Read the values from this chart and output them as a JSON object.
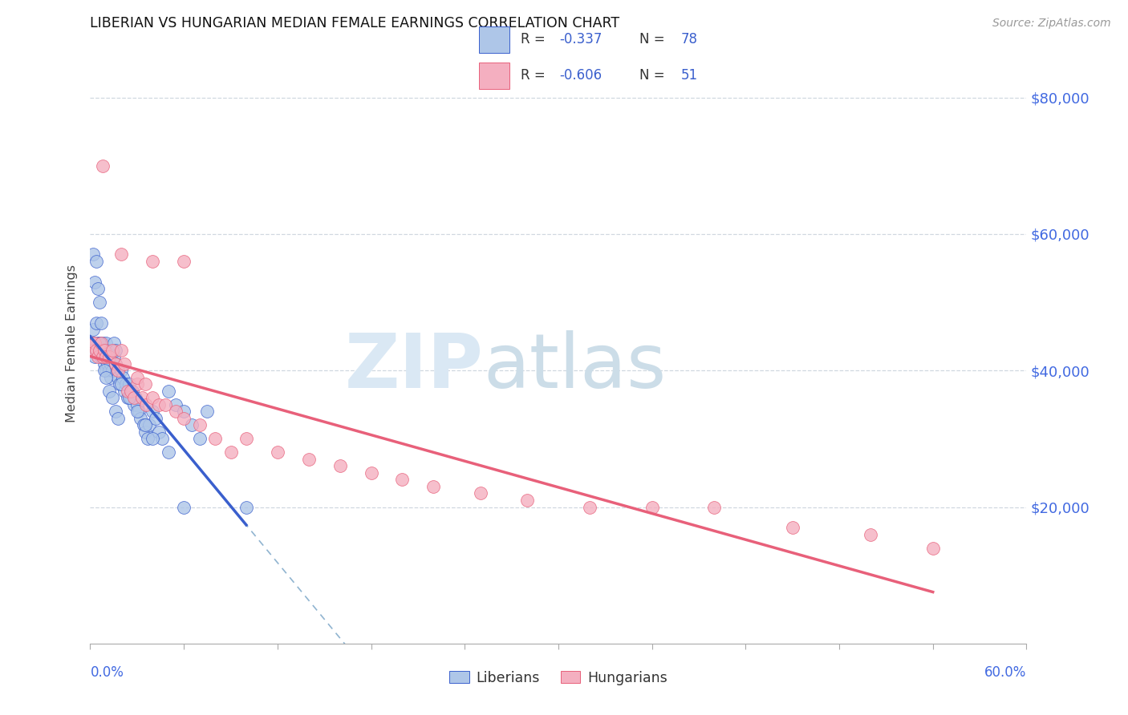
{
  "title": "LIBERIAN VS HUNGARIAN MEDIAN FEMALE EARNINGS CORRELATION CHART",
  "source": "Source: ZipAtlas.com",
  "ylabel": "Median Female Earnings",
  "xlim": [
    0.0,
    0.6
  ],
  "ylim": [
    0,
    88000
  ],
  "liberian_color": "#aec6e8",
  "hungarian_color": "#f4afc0",
  "liberian_line_color": "#3a5fcd",
  "hungarian_line_color": "#e8607a",
  "dashed_line_color": "#90b4d0",
  "legend_R_lib": "-0.337",
  "legend_N_lib": "78",
  "legend_R_hun": "-0.606",
  "legend_N_hun": "51",
  "lib_x": [
    0.001,
    0.002,
    0.002,
    0.003,
    0.003,
    0.004,
    0.004,
    0.005,
    0.005,
    0.006,
    0.006,
    0.007,
    0.007,
    0.008,
    0.008,
    0.009,
    0.009,
    0.01,
    0.01,
    0.011,
    0.011,
    0.012,
    0.012,
    0.013,
    0.013,
    0.014,
    0.015,
    0.015,
    0.016,
    0.016,
    0.017,
    0.018,
    0.019,
    0.02,
    0.021,
    0.022,
    0.023,
    0.024,
    0.025,
    0.026,
    0.027,
    0.028,
    0.029,
    0.03,
    0.031,
    0.032,
    0.034,
    0.035,
    0.037,
    0.038,
    0.04,
    0.042,
    0.044,
    0.046,
    0.05,
    0.055,
    0.06,
    0.065,
    0.07,
    0.075,
    0.003,
    0.004,
    0.006,
    0.007,
    0.009,
    0.01,
    0.012,
    0.014,
    0.016,
    0.018,
    0.02,
    0.025,
    0.03,
    0.035,
    0.04,
    0.05,
    0.06,
    0.1
  ],
  "lib_y": [
    44000,
    46000,
    57000,
    42000,
    53000,
    47000,
    56000,
    44000,
    52000,
    44000,
    50000,
    43000,
    47000,
    42000,
    44000,
    41000,
    43000,
    40000,
    44000,
    41000,
    43000,
    40000,
    42000,
    39000,
    41000,
    40000,
    42000,
    44000,
    41000,
    43000,
    40000,
    39000,
    38000,
    40000,
    39000,
    37000,
    38000,
    36000,
    38000,
    36000,
    37000,
    35000,
    36000,
    35000,
    34000,
    33000,
    32000,
    31000,
    30000,
    32000,
    34000,
    33000,
    31000,
    30000,
    37000,
    35000,
    34000,
    32000,
    30000,
    34000,
    44000,
    43000,
    44000,
    42000,
    40000,
    39000,
    37000,
    36000,
    34000,
    33000,
    38000,
    36000,
    34000,
    32000,
    30000,
    28000,
    20000,
    20000
  ],
  "hun_x": [
    0.001,
    0.002,
    0.003,
    0.004,
    0.005,
    0.006,
    0.007,
    0.008,
    0.009,
    0.01,
    0.012,
    0.014,
    0.016,
    0.018,
    0.02,
    0.022,
    0.024,
    0.026,
    0.028,
    0.03,
    0.033,
    0.036,
    0.04,
    0.044,
    0.048,
    0.055,
    0.06,
    0.07,
    0.08,
    0.09,
    0.1,
    0.12,
    0.14,
    0.16,
    0.18,
    0.2,
    0.22,
    0.25,
    0.28,
    0.32,
    0.36,
    0.4,
    0.45,
    0.5,
    0.54,
    0.008,
    0.02,
    0.04,
    0.03,
    0.035,
    0.06
  ],
  "hun_y": [
    44000,
    43000,
    44000,
    43000,
    42000,
    43000,
    44000,
    42000,
    43000,
    42000,
    42000,
    43000,
    41000,
    40000,
    43000,
    41000,
    37000,
    37000,
    36000,
    38000,
    36000,
    35000,
    36000,
    35000,
    35000,
    34000,
    33000,
    32000,
    30000,
    28000,
    30000,
    28000,
    27000,
    26000,
    25000,
    24000,
    23000,
    22000,
    21000,
    20000,
    20000,
    20000,
    17000,
    16000,
    14000,
    70000,
    57000,
    56000,
    39000,
    38000,
    56000
  ]
}
